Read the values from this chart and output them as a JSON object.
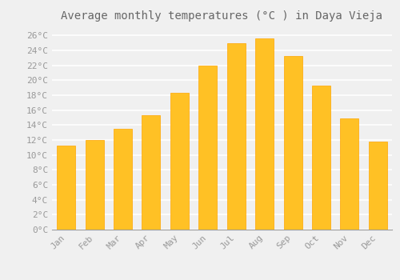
{
  "title": "Average monthly temperatures (°C ) in Daya Vieja",
  "months": [
    "Jan",
    "Feb",
    "Mar",
    "Apr",
    "May",
    "Jun",
    "Jul",
    "Aug",
    "Sep",
    "Oct",
    "Nov",
    "Dec"
  ],
  "values": [
    11.3,
    12.0,
    13.5,
    15.3,
    18.3,
    22.0,
    25.0,
    25.6,
    23.3,
    19.3,
    14.9,
    11.8
  ],
  "bar_color": "#FFC125",
  "bar_edge_color": "#FFA500",
  "background_color": "#f0f0f0",
  "grid_color": "#ffffff",
  "text_color": "#999999",
  "title_color": "#666666",
  "ylim": [
    0,
    27
  ],
  "yticks": [
    0,
    2,
    4,
    6,
    8,
    10,
    12,
    14,
    16,
    18,
    20,
    22,
    24,
    26
  ],
  "title_fontsize": 10,
  "tick_fontsize": 8,
  "font_family": "monospace",
  "bar_width": 0.65
}
